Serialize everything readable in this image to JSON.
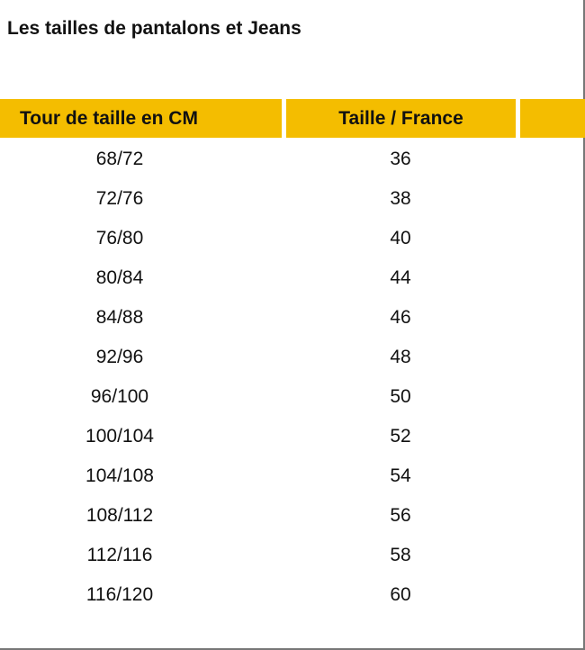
{
  "title": "Les tailles de pantalons et Jeans",
  "header_color": "#f4bd00",
  "columns": [
    "Tour de taille en CM",
    "Taille / France",
    ""
  ],
  "rows": [
    [
      "68/72",
      "36"
    ],
    [
      "72/76",
      "38"
    ],
    [
      "76/80",
      "40"
    ],
    [
      "80/84",
      "44"
    ],
    [
      "84/88",
      "46"
    ],
    [
      "92/96",
      "48"
    ],
    [
      "96/100",
      "50"
    ],
    [
      "100/104",
      "52"
    ],
    [
      "104/108",
      "54"
    ],
    [
      "108/112",
      "56"
    ],
    [
      "112/116",
      "58"
    ],
    [
      "116/120",
      "60"
    ]
  ]
}
